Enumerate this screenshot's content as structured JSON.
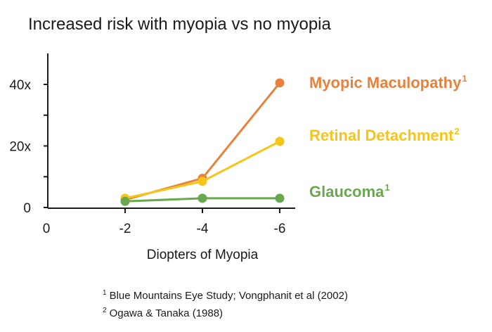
{
  "chart_data": {
    "type": "line",
    "title": "Increased risk with myopia vs no myopia",
    "xlabel": "Diopters of Myopia",
    "ylabel": "",
    "x_ticks": [
      "0",
      "-2",
      "-4",
      "-6"
    ],
    "y_ticks": [
      "0",
      "20x",
      "40x"
    ],
    "x": [
      -2,
      -4,
      -6
    ],
    "xlim": [
      0,
      -6
    ],
    "ylim": [
      0,
      40
    ],
    "grid": false,
    "series": [
      {
        "name": "Myopic Maculopathy",
        "sup": "1",
        "color": "#e8813a",
        "values": [
          2.5,
          9.5,
          40.5
        ]
      },
      {
        "name": "Retinal Detachment",
        "sup": "2",
        "color": "#f5c518",
        "values": [
          3,
          8.5,
          21.5
        ]
      },
      {
        "name": "Glaucoma",
        "sup": "1",
        "color": "#6aa84f",
        "values": [
          2,
          3,
          3
        ]
      }
    ]
  },
  "footnotes": [
    {
      "mark": "1",
      "text": "Blue Mountains Eye Study; Vongphanit et al (2002)"
    },
    {
      "mark": "2",
      "text": "Ogawa & Tanaka (1988)"
    }
  ]
}
